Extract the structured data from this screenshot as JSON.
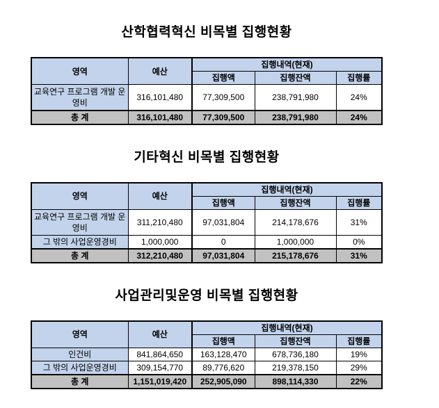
{
  "style": {
    "header_fill": "#c3d3ec",
    "area_label_fill": "#c3d3ec",
    "total_row_fill": "#c1c1c1",
    "border_color": "#000000",
    "text_color": "#000000",
    "page_background": "#ffffff"
  },
  "columns": {
    "area": "영역",
    "budget": "예산",
    "exec_group": "집행내역(현재)",
    "exec_amount": "집행액",
    "exec_balance": "집행잔액",
    "exec_rate": "집행률"
  },
  "tables": [
    {
      "title": "산학협력혁신 비목별 집행현황",
      "rows": [
        {
          "area": "교육연구 프로그램 개발 운영비",
          "budget": "316,101,480",
          "amount": "77,309,500",
          "balance": "238,791,980",
          "rate": "24%"
        }
      ],
      "total": {
        "label": "총 계",
        "budget": "316,101,480",
        "amount": "77,309,500",
        "balance": "238,791,980",
        "rate": "24%"
      }
    },
    {
      "title": "기타혁신 비목별 집행현황",
      "rows": [
        {
          "area": "교육연구 프로그램 개발 운영비",
          "budget": "311,210,480",
          "amount": "97,031,804",
          "balance": "214,178,676",
          "rate": "31%"
        },
        {
          "area": "그 밖의 사업운영경비",
          "budget": "1,000,000",
          "amount": "0",
          "balance": "1,000,000",
          "rate": "0%"
        }
      ],
      "total": {
        "label": "총 계",
        "budget": "312,210,480",
        "amount": "97,031,804",
        "balance": "215,178,676",
        "rate": "31%"
      }
    },
    {
      "title": "사업관리및운영 비목별 집행현황",
      "rows": [
        {
          "area": "인건비",
          "budget": "841,864,650",
          "amount": "163,128,470",
          "balance": "678,736,180",
          "rate": "19%"
        },
        {
          "area": "그 밖의 사업운영경비",
          "budget": "309,154,770",
          "amount": "89,776,620",
          "balance": "219,378,150",
          "rate": "29%"
        }
      ],
      "total": {
        "label": "총 계",
        "budget": "1,151,019,420",
        "amount": "252,905,090",
        "balance": "898,114,330",
        "rate": "22%"
      }
    }
  ]
}
